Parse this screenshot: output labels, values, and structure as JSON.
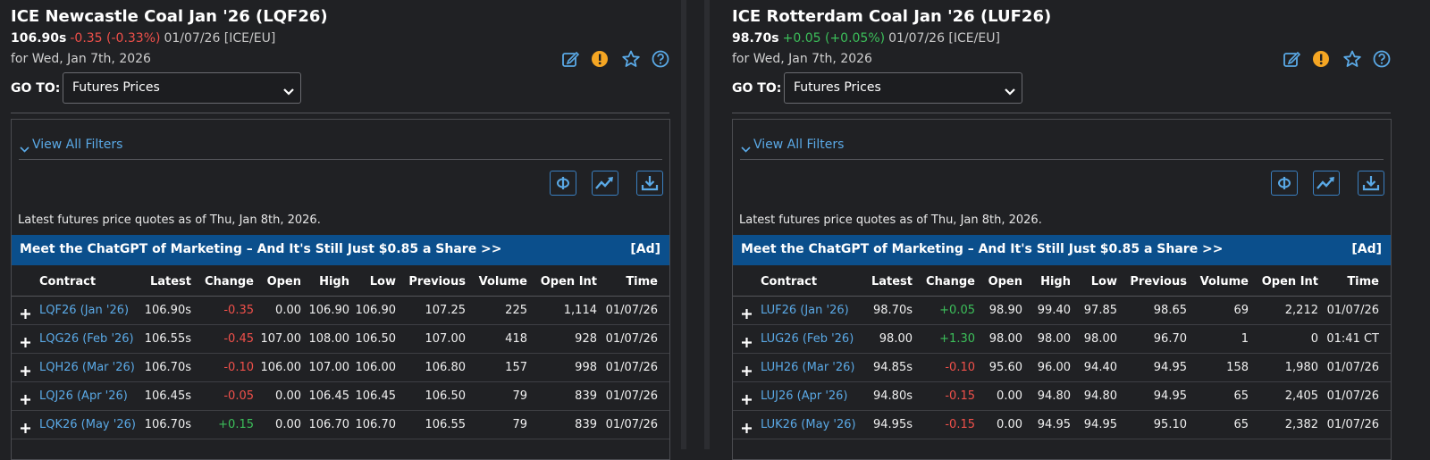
{
  "panels": [
    {
      "title": "ICE Newcastle Coal Jan '26 (LQF26)",
      "quote": {
        "last": "106.90s",
        "change": "-0.35 (-0.33%)",
        "info": "01/07/26 [ICE/EU]"
      },
      "for_date": "for Wed, Jan 7th, 2026",
      "goto_label": "GO TO:",
      "goto_value": "Futures Prices",
      "filters": "View All Filters",
      "as_of": "Latest futures price quotes as of Thu, Jan 8th, 2026.",
      "ad": {
        "text": "Meet the ChatGPT of Marketing – And It's Still Just $0.85 a Share >>",
        "tag": "[Ad]"
      },
      "table": {
        "headers": [
          "Contract",
          "Latest",
          "Change",
          "Open",
          "High",
          "Low",
          "Previous",
          "Volume",
          "Open Int",
          "Time"
        ],
        "rows": [
          [
            "LQF26 (Jan '26)",
            "106.90s",
            "-0.35",
            "0.00",
            "106.90",
            "106.90",
            "107.25",
            "225",
            "1,114",
            "01/07/26"
          ],
          [
            "LQG26 (Feb '26)",
            "106.55s",
            "-0.45",
            "107.00",
            "108.00",
            "106.50",
            "107.00",
            "418",
            "928",
            "01/07/26"
          ],
          [
            "LQH26 (Mar '26)",
            "106.70s",
            "-0.10",
            "106.00",
            "107.00",
            "106.00",
            "106.80",
            "157",
            "998",
            "01/07/26"
          ],
          [
            "LQJ26 (Apr '26)",
            "106.45s",
            "-0.05",
            "0.00",
            "106.45",
            "106.45",
            "106.50",
            "79",
            "839",
            "01/07/26"
          ],
          [
            "LQK26 (May '26)",
            "106.70s",
            "+0.15",
            "0.00",
            "106.70",
            "106.70",
            "106.55",
            "79",
            "839",
            "01/07/26"
          ]
        ]
      }
    },
    {
      "title": "ICE Rotterdam Coal Jan '26 (LUF26)",
      "quote": {
        "last": "98.70s",
        "change": "+0.05 (+0.05%)",
        "info": "01/07/26 [ICE/EU]"
      },
      "for_date": "for Wed, Jan 7th, 2026",
      "goto_label": "GO TO:",
      "goto_value": "Futures Prices",
      "filters": "View All Filters",
      "as_of": "Latest futures price quotes as of Thu, Jan 8th, 2026.",
      "ad": {
        "text": "Meet the ChatGPT of Marketing – And It's Still Just $0.85 a Share >>",
        "tag": "[Ad]"
      },
      "table": {
        "headers": [
          "Contract",
          "Latest",
          "Change",
          "Open",
          "High",
          "Low",
          "Previous",
          "Volume",
          "Open Int",
          "Time"
        ],
        "rows": [
          [
            "LUF26 (Jan '26)",
            "98.70s",
            "+0.05",
            "98.90",
            "99.40",
            "97.85",
            "98.65",
            "69",
            "2,212",
            "01/07/26"
          ],
          [
            "LUG26 (Feb '26)",
            "98.00",
            "+1.30",
            "98.00",
            "98.00",
            "98.00",
            "96.70",
            "1",
            "0",
            "01:41 CT"
          ],
          [
            "LUH26 (Mar '26)",
            "94.85s",
            "-0.10",
            "95.60",
            "96.00",
            "94.40",
            "94.95",
            "158",
            "1,980",
            "01/07/26"
          ],
          [
            "LUJ26 (Apr '26)",
            "94.80s",
            "-0.15",
            "0.00",
            "94.80",
            "94.80",
            "94.95",
            "65",
            "2,405",
            "01/07/26"
          ],
          [
            "LUK26 (May '26)",
            "94.95s",
            "-0.15",
            "0.00",
            "94.95",
            "94.95",
            "95.10",
            "65",
            "2,382",
            "01/07/26"
          ]
        ]
      }
    }
  ]
}
